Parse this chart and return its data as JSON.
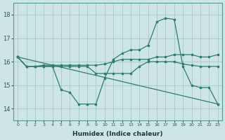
{
  "bg_color": "#cde5e5",
  "grid_color": "#aacccc",
  "line_color": "#2e7d6e",
  "xlabel": "Humidex (Indice chaleur)",
  "xlim": [
    -0.5,
    23.5
  ],
  "ylim": [
    13.5,
    18.5
  ],
  "yticks": [
    14,
    15,
    16,
    17,
    18
  ],
  "xticks": [
    0,
    1,
    2,
    3,
    4,
    5,
    6,
    7,
    8,
    9,
    10,
    11,
    12,
    13,
    14,
    15,
    16,
    17,
    18,
    19,
    20,
    21,
    22,
    23
  ],
  "lines": [
    {
      "x": [
        0,
        1,
        2,
        3,
        4,
        5,
        6,
        7,
        8,
        9,
        10,
        11,
        12,
        13,
        14,
        15,
        16,
        17,
        18,
        19,
        20,
        21,
        22,
        23
      ],
      "y": [
        16.2,
        15.8,
        15.8,
        15.8,
        15.8,
        14.8,
        14.7,
        14.2,
        14.2,
        14.2,
        15.3,
        16.1,
        16.35,
        16.5,
        16.5,
        16.7,
        17.7,
        17.85,
        17.8,
        15.8,
        15.0,
        14.9,
        14.9,
        14.2
      ]
    },
    {
      "x": [
        0,
        23
      ],
      "y": [
        16.2,
        14.2
      ]
    },
    {
      "x": [
        0,
        1,
        2,
        3,
        4,
        5,
        6,
        7,
        8,
        9,
        10,
        11,
        12,
        13,
        14,
        15,
        16,
        17,
        18,
        19,
        20,
        21,
        22,
        23
      ],
      "y": [
        16.2,
        15.8,
        15.8,
        15.8,
        15.8,
        15.8,
        15.8,
        15.8,
        15.8,
        15.5,
        15.5,
        15.5,
        15.5,
        15.5,
        15.8,
        16.0,
        16.0,
        16.0,
        16.0,
        15.9,
        15.85,
        15.8,
        15.8,
        15.8
      ]
    },
    {
      "x": [
        0,
        1,
        2,
        3,
        4,
        5,
        6,
        7,
        8,
        9,
        10,
        11,
        12,
        13,
        14,
        15,
        16,
        17,
        18,
        19,
        20,
        21,
        22,
        23
      ],
      "y": [
        16.2,
        15.8,
        15.8,
        15.85,
        15.85,
        15.85,
        15.85,
        15.85,
        15.85,
        15.85,
        15.9,
        16.0,
        16.1,
        16.1,
        16.1,
        16.1,
        16.2,
        16.2,
        16.3,
        16.3,
        16.3,
        16.2,
        16.2,
        16.3
      ]
    }
  ]
}
